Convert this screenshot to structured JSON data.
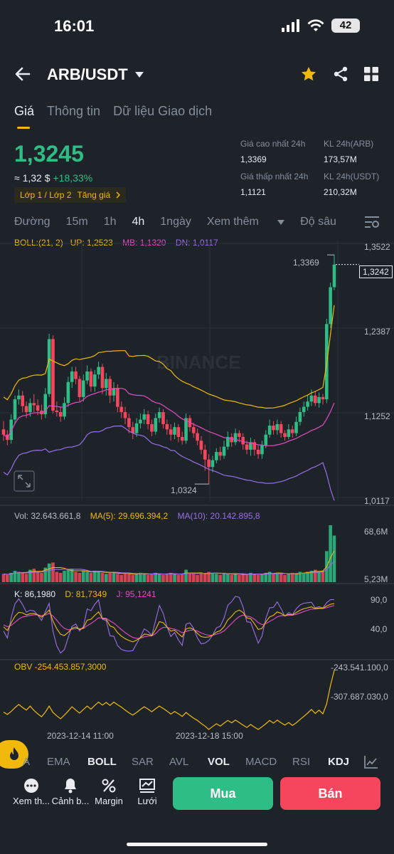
{
  "status_bar": {
    "time": "16:01",
    "battery": "42"
  },
  "header": {
    "pair": "ARB/USDT"
  },
  "tabs": [
    "Giá",
    "Thông tin",
    "Dữ liệu Giao dịch"
  ],
  "ticker": {
    "price": "1,3245",
    "approx": "≈ 1,32 $",
    "change": "+18,33%",
    "tags": [
      "Lớp 1 / Lớp 2",
      "Tăng giá"
    ],
    "high_label": "Giá cao nhất 24h",
    "high": "1,3369",
    "low_label": "Giá thấp nhất 24h",
    "low": "1,1121",
    "vol_arb_label": "KL 24h(ARB)",
    "vol_arb": "173,57M",
    "vol_usdt_label": "KL 24h(USDT)",
    "vol_usdt": "210,32M"
  },
  "intervals": [
    "Đường",
    "15m",
    "1h",
    "4h",
    "1ngày",
    "Xem thêm",
    "Độ sâu"
  ],
  "selected_interval": "4h",
  "indicator_tabs": [
    "A",
    "EMA",
    "BOLL",
    "SAR",
    "AVL",
    "VOL",
    "MACD",
    "RSI",
    "KDJ"
  ],
  "bottom": {
    "more": "Xem th...",
    "alert": "Cảnh b...",
    "margin": "Margin",
    "grid": "Lưới",
    "buy": "Mua",
    "sell": "Bán"
  },
  "colors": {
    "up": "#2ebd85",
    "down": "#f6465d",
    "accent": "#f0b90b",
    "boll_up": "#f0b90b",
    "boll_mb": "#e649c8",
    "boll_dn": "#9a6ee8",
    "ma5": "#f0b90b",
    "ma10": "#9a6ee8"
  },
  "chart_data": {
    "type": "candlestick",
    "watermark": "BINANCE",
    "boll": {
      "label": "BOLL:(21, 2)",
      "up": "UP: 1,2523",
      "mb": "MB: 1,1320",
      "dn": "DN: 1,0117"
    },
    "price_axis": [
      "1,3522",
      "1,2387",
      "1,1252",
      "1,0117"
    ],
    "ylim": [
      1.0117,
      1.3522
    ],
    "current_price_tag": "1,3242",
    "current_price": 1.3242,
    "high_marker": "1,3369",
    "high_value": 1.3369,
    "low_marker": "1,0324",
    "low_value": 1.0324,
    "x_labels": [
      "2023-12-14 11:00",
      "2023-12-18 15:00"
    ],
    "candles": [
      [
        1.105,
        1.098,
        1.116,
        1.09
      ],
      [
        1.098,
        1.091,
        1.104,
        1.084
      ],
      [
        1.091,
        1.118,
        1.125,
        1.086
      ],
      [
        1.118,
        1.145,
        1.15,
        1.112
      ],
      [
        1.145,
        1.15,
        1.158,
        1.138
      ],
      [
        1.15,
        1.136,
        1.156,
        1.128
      ],
      [
        1.136,
        1.128,
        1.142,
        1.12
      ],
      [
        1.128,
        1.14,
        1.146,
        1.122
      ],
      [
        1.14,
        1.137,
        1.152,
        1.128
      ],
      [
        1.137,
        1.13,
        1.145,
        1.124
      ],
      [
        1.13,
        1.125,
        1.138,
        1.118
      ],
      [
        1.125,
        1.152,
        1.16,
        1.12
      ],
      [
        1.152,
        1.225,
        1.232,
        1.148
      ],
      [
        1.225,
        1.13,
        1.23,
        1.126
      ],
      [
        1.13,
        1.128,
        1.142,
        1.122
      ],
      [
        1.128,
        1.122,
        1.135,
        1.115
      ],
      [
        1.122,
        1.14,
        1.148,
        1.118
      ],
      [
        1.14,
        1.168,
        1.175,
        1.135
      ],
      [
        1.168,
        1.182,
        1.188,
        1.16
      ],
      [
        1.182,
        1.172,
        1.188,
        1.165
      ],
      [
        1.172,
        1.148,
        1.176,
        1.142
      ],
      [
        1.148,
        1.17,
        1.178,
        1.142
      ],
      [
        1.17,
        1.182,
        1.19,
        1.165
      ],
      [
        1.182,
        1.162,
        1.186,
        1.155
      ],
      [
        1.162,
        1.178,
        1.184,
        1.155
      ],
      [
        1.178,
        1.188,
        1.195,
        1.172
      ],
      [
        1.188,
        1.16,
        1.192,
        1.152
      ],
      [
        1.16,
        1.172,
        1.18,
        1.15
      ],
      [
        1.172,
        1.15,
        1.176,
        1.14
      ],
      [
        1.15,
        1.16,
        1.168,
        1.142
      ],
      [
        1.16,
        1.135,
        1.165,
        1.128
      ],
      [
        1.135,
        1.128,
        1.142,
        1.12
      ],
      [
        1.128,
        1.12,
        1.135,
        1.112
      ],
      [
        1.12,
        1.108,
        1.126,
        1.1
      ],
      [
        1.108,
        1.1,
        1.115,
        1.092
      ],
      [
        1.1,
        1.113,
        1.12,
        1.095
      ],
      [
        1.113,
        1.118,
        1.126,
        1.106
      ],
      [
        1.118,
        1.125,
        1.132,
        1.112
      ],
      [
        1.125,
        1.112,
        1.13,
        1.105
      ],
      [
        1.112,
        1.102,
        1.118,
        1.096
      ],
      [
        1.102,
        1.12,
        1.126,
        1.098
      ],
      [
        1.12,
        1.128,
        1.134,
        1.114
      ],
      [
        1.128,
        1.112,
        1.132,
        1.106
      ],
      [
        1.112,
        1.105,
        1.118,
        1.098
      ],
      [
        1.105,
        1.098,
        1.112,
        1.09
      ],
      [
        1.098,
        1.108,
        1.114,
        1.092
      ],
      [
        1.108,
        1.095,
        1.112,
        1.088
      ],
      [
        1.095,
        1.09,
        1.102,
        1.085
      ],
      [
        1.09,
        1.12,
        1.126,
        1.086
      ],
      [
        1.12,
        1.108,
        1.124,
        1.102
      ],
      [
        1.108,
        1.1,
        1.114,
        1.094
      ],
      [
        1.1,
        1.09,
        1.106,
        1.084
      ],
      [
        1.09,
        1.078,
        1.096,
        1.072
      ],
      [
        1.078,
        1.065,
        1.085,
        1.05
      ],
      [
        1.065,
        1.055,
        1.072,
        1.032
      ],
      [
        1.055,
        1.064,
        1.07,
        1.048
      ],
      [
        1.064,
        1.075,
        1.08,
        1.06
      ],
      [
        1.075,
        1.07,
        1.082,
        1.064
      ],
      [
        1.07,
        1.082,
        1.09,
        1.066
      ],
      [
        1.082,
        1.095,
        1.102,
        1.078
      ],
      [
        1.095,
        1.088,
        1.1,
        1.082
      ],
      [
        1.088,
        1.1,
        1.106,
        1.084
      ],
      [
        1.1,
        1.095,
        1.104,
        1.088
      ],
      [
        1.095,
        1.085,
        1.1,
        1.078
      ],
      [
        1.085,
        1.078,
        1.09,
        1.072
      ],
      [
        1.078,
        1.088,
        1.094,
        1.07
      ],
      [
        1.088,
        1.078,
        1.092,
        1.07
      ],
      [
        1.078,
        1.072,
        1.084,
        1.066
      ],
      [
        1.072,
        1.084,
        1.09,
        1.066
      ],
      [
        1.084,
        1.098,
        1.104,
        1.08
      ],
      [
        1.098,
        1.11,
        1.118,
        1.094
      ],
      [
        1.11,
        1.104,
        1.116,
        1.098
      ],
      [
        1.104,
        1.112,
        1.118,
        1.098
      ],
      [
        1.112,
        1.1,
        1.116,
        1.094
      ],
      [
        1.1,
        1.095,
        1.104,
        1.09
      ],
      [
        1.095,
        1.105,
        1.112,
        1.092
      ],
      [
        1.105,
        1.1,
        1.11,
        1.094
      ],
      [
        1.1,
        1.115,
        1.122,
        1.096
      ],
      [
        1.115,
        1.128,
        1.134,
        1.11
      ],
      [
        1.128,
        1.135,
        1.142,
        1.122
      ],
      [
        1.135,
        1.142,
        1.15,
        1.13
      ],
      [
        1.142,
        1.15,
        1.158,
        1.136
      ],
      [
        1.15,
        1.14,
        1.155,
        1.136
      ],
      [
        1.14,
        1.148,
        1.154,
        1.134
      ],
      [
        1.148,
        1.145,
        1.152,
        1.138
      ],
      [
        1.145,
        1.245,
        1.252,
        1.14
      ],
      [
        1.245,
        1.294,
        1.3,
        1.24
      ],
      [
        1.294,
        1.324,
        1.337,
        1.29
      ]
    ],
    "volume": {
      "label_vol": "Vol: 32.643.661,8",
      "label_ma5": "MA(5): 29.696.394,2",
      "label_ma10": "MA(10): 20.142.895,8",
      "axis": [
        "68,6M",
        "5,23M"
      ],
      "values": [
        8,
        7,
        9,
        11,
        10,
        9,
        8,
        12,
        13,
        10,
        9,
        14,
        18,
        19,
        10,
        9,
        11,
        12,
        13,
        10,
        9,
        11,
        10,
        9,
        11,
        10,
        9,
        8,
        9,
        10,
        8,
        7,
        9,
        8,
        7,
        8,
        9,
        8,
        7,
        8,
        9,
        8,
        7,
        8,
        9,
        8,
        7,
        8,
        12,
        9,
        8,
        7,
        9,
        8,
        10,
        9,
        8,
        7,
        9,
        8,
        7,
        8,
        7,
        8,
        7,
        9,
        8,
        7,
        8,
        9,
        10,
        8,
        9,
        8,
        7,
        8,
        9,
        8,
        10,
        9,
        10,
        11,
        12,
        10,
        11,
        30,
        55,
        45
      ]
    },
    "kdj": {
      "label_k": "K: 86,1980",
      "label_d": "D: 81,7349",
      "label_j": "J: 95,1241",
      "axis": [
        "90,0",
        "40,0"
      ]
    },
    "obv": {
      "label": "OBV -254.453.857,3000",
      "axis": [
        "-243.541.100,0",
        "-307.687.030,0"
      ]
    }
  }
}
